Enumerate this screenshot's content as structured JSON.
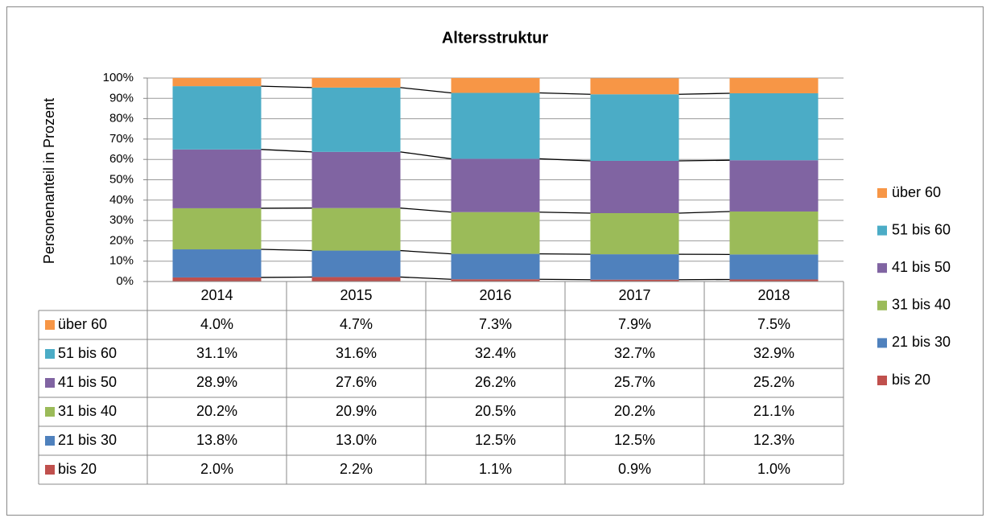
{
  "chart_data": {
    "type": "stacked-bar",
    "title": "Altersstruktur",
    "y_label": "Personenanteil in Prozent",
    "categories": [
      "2014",
      "2015",
      "2016",
      "2017",
      "2018"
    ],
    "series": [
      {
        "name": "bis 20",
        "color": "#c0504d",
        "values": [
          2.0,
          2.2,
          1.1,
          0.9,
          1.0
        ],
        "value_labels": [
          "2.0%",
          "2.2%",
          "1.1%",
          "0.9%",
          "1.0%"
        ]
      },
      {
        "name": "21 bis 30",
        "color": "#4f81bd",
        "values": [
          13.8,
          13.0,
          12.5,
          12.5,
          12.3
        ],
        "value_labels": [
          "13.8%",
          "13.0%",
          "12.5%",
          "12.5%",
          "12.3%"
        ]
      },
      {
        "name": "31 bis 40",
        "color": "#9bbb59",
        "values": [
          20.2,
          20.9,
          20.5,
          20.2,
          21.1
        ],
        "value_labels": [
          "20.2%",
          "20.9%",
          "20.5%",
          "20.2%",
          "21.1%"
        ]
      },
      {
        "name": "41 bis 50",
        "color": "#8064a2",
        "values": [
          28.9,
          27.6,
          26.2,
          25.7,
          25.2
        ],
        "value_labels": [
          "28.9%",
          "27.6%",
          "26.2%",
          "25.7%",
          "25.2%"
        ]
      },
      {
        "name": "51 bis 60",
        "color": "#4bacc6",
        "values": [
          31.1,
          31.6,
          32.4,
          32.7,
          32.9
        ],
        "value_labels": [
          "31.1%",
          "31.6%",
          "32.4%",
          "32.7%",
          "32.9%"
        ]
      },
      {
        "name": "über 60",
        "color": "#f79646",
        "values": [
          4.0,
          4.7,
          7.3,
          7.9,
          7.5
        ],
        "value_labels": [
          "4.0%",
          "4.7%",
          "7.3%",
          "7.9%",
          "7.5%"
        ]
      }
    ],
    "ylim": [
      0,
      100
    ],
    "yticks": [
      {
        "value": 0,
        "label": "0%"
      },
      {
        "value": 10,
        "label": "10%"
      },
      {
        "value": 20,
        "label": "20%"
      },
      {
        "value": 30,
        "label": "30%"
      },
      {
        "value": 40,
        "label": "40%"
      },
      {
        "value": 50,
        "label": "50%"
      },
      {
        "value": 60,
        "label": "60%"
      },
      {
        "value": 70,
        "label": "70%"
      },
      {
        "value": 80,
        "label": "80%"
      },
      {
        "value": 90,
        "label": "90%"
      },
      {
        "value": 100,
        "label": "100%"
      }
    ],
    "grid": true,
    "series_lines": true,
    "legend": "right"
  }
}
